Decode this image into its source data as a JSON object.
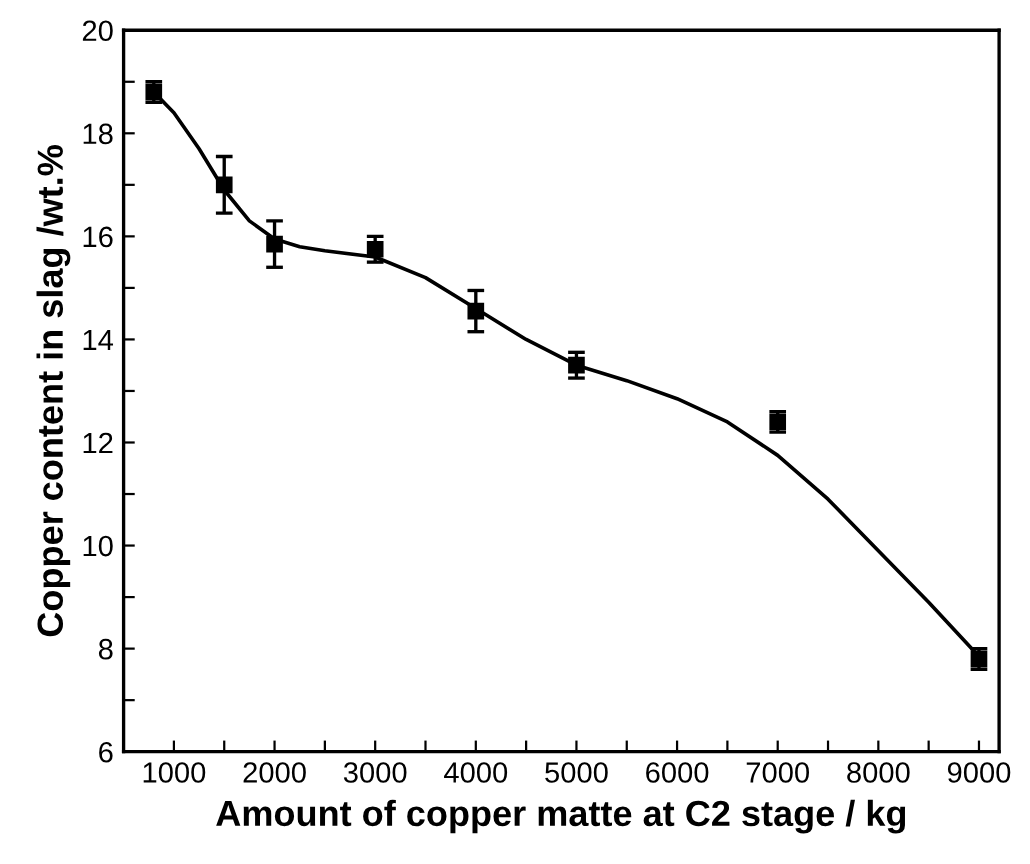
{
  "chart_data": {
    "type": "scatter",
    "xlabel": "Amount of copper matte at C2 stage / kg",
    "ylabel": "Copper content in slag /wt.%",
    "xlim": [
      500,
      9200
    ],
    "ylim": [
      6,
      20
    ],
    "xticks": [
      1000,
      {
        "value": 1500,
        "label": null
      },
      2000,
      {
        "value": 2500,
        "label": null
      },
      3000,
      {
        "value": 3500,
        "label": null
      },
      4000,
      {
        "value": 4500,
        "label": null
      },
      5000,
      {
        "value": 5500,
        "label": null
      },
      6000,
      {
        "value": 6500,
        "label": null
      },
      7000,
      {
        "value": 7500,
        "label": null
      },
      8000,
      {
        "value": 8500,
        "label": null
      },
      9000
    ],
    "yticks": [
      6,
      {
        "value": 7,
        "label": null
      },
      8,
      {
        "value": 9,
        "label": null
      },
      10,
      {
        "value": 11,
        "label": null
      },
      12,
      {
        "value": 13,
        "label": null
      },
      14,
      {
        "value": 15,
        "label": null
      },
      16,
      {
        "value": 17,
        "label": null
      },
      18,
      {
        "value": 19,
        "label": null
      },
      20
    ],
    "grid": false,
    "legend": false,
    "series": [
      {
        "color": "#000000",
        "marker": "square",
        "x": [
          800,
          1500,
          2000,
          3000,
          4000,
          5000,
          7000,
          9000
        ],
        "values": [
          18.8,
          17.0,
          15.85,
          15.75,
          14.55,
          13.5,
          12.4,
          7.8
        ],
        "errors": [
          0.2,
          0.55,
          0.45,
          0.25,
          0.4,
          0.25,
          0.2,
          0.2
        ]
      },
      {
        "type": "line",
        "color": "#000000",
        "line_style": "solid",
        "marker": "none",
        "x": [
          800,
          1000,
          1250,
          1500,
          1750,
          2000,
          2250,
          2500,
          3000,
          3500,
          4000,
          4500,
          5000,
          5500,
          6000,
          6500,
          7000,
          7500,
          8000,
          8500,
          9000
        ],
        "values": [
          18.8,
          18.4,
          17.7,
          16.9,
          16.3,
          15.95,
          15.8,
          15.72,
          15.6,
          15.2,
          14.6,
          14.0,
          13.5,
          13.2,
          12.85,
          12.4,
          11.75,
          10.9,
          9.9,
          8.9,
          7.85
        ]
      }
    ]
  }
}
